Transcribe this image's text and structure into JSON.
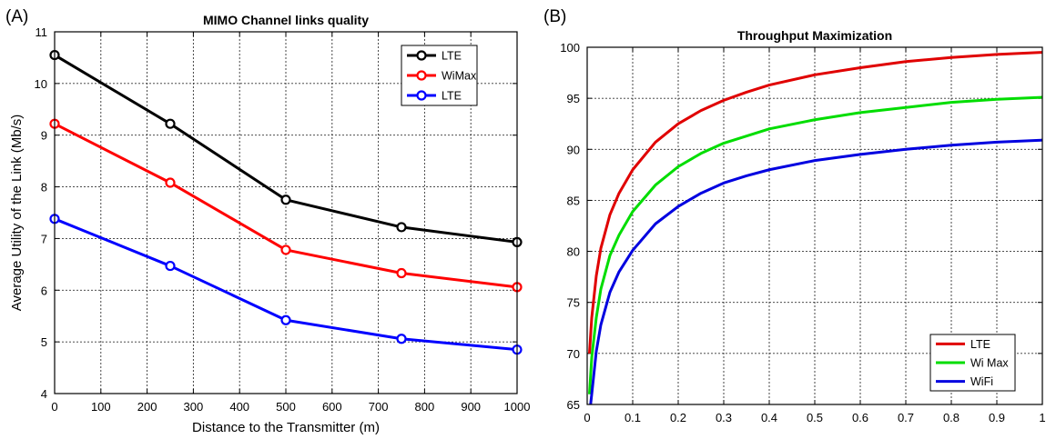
{
  "chart_data": [
    {
      "panel_label": "(A)",
      "type": "line",
      "title": "MIMO Channel links quality",
      "xlabel": "Distance to the Transmitter (m)",
      "ylabel": "Average Utility of the Link (Mb/s)",
      "xlim": [
        0,
        1000
      ],
      "ylim": [
        4,
        11
      ],
      "xticks": [
        0,
        100,
        200,
        300,
        400,
        500,
        600,
        700,
        800,
        900,
        1000
      ],
      "yticks": [
        4,
        5,
        6,
        7,
        8,
        9,
        10,
        11
      ],
      "grid": true,
      "legend_position": "top-right",
      "markers": "circle",
      "x": [
        0,
        250,
        500,
        750,
        1000
      ],
      "series": [
        {
          "name": "LTE",
          "color": "#000000",
          "values": [
            10.55,
            9.22,
            7.75,
            7.22,
            6.93
          ]
        },
        {
          "name": "WiMax",
          "color": "#ff0000",
          "values": [
            9.22,
            8.08,
            6.78,
            6.33,
            6.06
          ]
        },
        {
          "name": "LTE",
          "color": "#0000ff",
          "values": [
            7.38,
            6.47,
            5.42,
            5.06,
            4.85
          ]
        }
      ]
    },
    {
      "panel_label": "(B)",
      "type": "line",
      "title": "Throughput Maximization",
      "xlabel": "",
      "ylabel": "",
      "xlim": [
        0,
        1
      ],
      "ylim": [
        65,
        100
      ],
      "xticks": [
        0,
        0.1,
        0.2,
        0.3,
        0.4,
        0.5,
        0.6,
        0.7,
        0.8,
        0.9,
        1
      ],
      "yticks": [
        65,
        70,
        75,
        80,
        85,
        90,
        95,
        100
      ],
      "grid": true,
      "legend_position": "bottom-right",
      "markers": "none",
      "x": [
        0.005,
        0.01,
        0.02,
        0.03,
        0.05,
        0.07,
        0.1,
        0.15,
        0.2,
        0.25,
        0.3,
        0.35,
        0.4,
        0.5,
        0.6,
        0.7,
        0.8,
        0.9,
        1.0
      ],
      "series": [
        {
          "name": "LTE",
          "color": "#e00000",
          "values": [
            70.0,
            73.5,
            77.6,
            80.3,
            83.6,
            85.7,
            88.0,
            90.7,
            92.5,
            93.8,
            94.8,
            95.6,
            96.3,
            97.3,
            98.0,
            98.6,
            99.0,
            99.3,
            99.5
          ]
        },
        {
          "name": "Wi Max",
          "color": "#00dd00",
          "values": [
            66.0,
            69.6,
            73.5,
            76.3,
            79.6,
            81.6,
            83.9,
            86.5,
            88.3,
            89.6,
            90.6,
            91.3,
            92.0,
            92.9,
            93.6,
            94.1,
            94.6,
            94.9,
            95.1
          ]
        },
        {
          "name": "WiFi",
          "color": "#0000e0",
          "values": [
            64.0,
            66.0,
            70.2,
            72.8,
            76.0,
            78.0,
            80.1,
            82.7,
            84.4,
            85.7,
            86.7,
            87.4,
            88.0,
            88.9,
            89.5,
            90.0,
            90.4,
            90.7,
            90.9
          ]
        }
      ]
    }
  ]
}
